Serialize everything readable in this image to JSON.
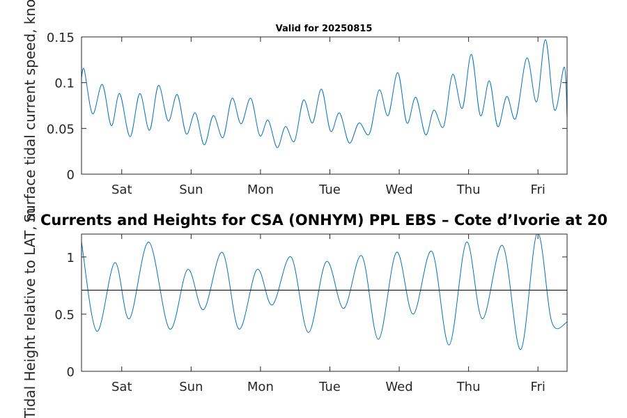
{
  "chart_data": [
    {
      "type": "line",
      "title": "Valid for 20250815",
      "xlabel": "",
      "ylabel": "Surface tidal current speed, knots",
      "ylim": [
        0,
        0.15
      ],
      "xlim": [
        0.42,
        7.42
      ],
      "yticks": [
        0,
        0.05,
        0.1,
        0.15
      ],
      "ytick_labels": [
        "0",
        "0.05",
        "0.1",
        "0.15"
      ],
      "xticks": [
        1,
        2,
        3,
        4,
        5,
        6,
        7
      ],
      "xtick_labels": [
        "Sat",
        "Sun",
        "Mon",
        "Tue",
        "Wed",
        "Thu",
        "Fri"
      ],
      "line_color": "#0072bd",
      "x": [
        0.42,
        0.46,
        0.58,
        0.72,
        0.85,
        0.97,
        1.12,
        1.26,
        1.4,
        1.53,
        1.67,
        1.8,
        1.93,
        2.06,
        2.19,
        2.32,
        2.46,
        2.59,
        2.72,
        2.86,
        2.99,
        3.11,
        3.24,
        3.36,
        3.49,
        3.62,
        3.75,
        3.88,
        4.01,
        4.14,
        4.28,
        4.42,
        4.57,
        4.71,
        4.84,
        4.98,
        5.11,
        5.24,
        5.38,
        5.5,
        5.64,
        5.77,
        5.91,
        6.04,
        6.17,
        6.3,
        6.42,
        6.55,
        6.68,
        6.84,
        6.98,
        7.11,
        7.24,
        7.38,
        7.42
      ],
      "y": [
        0.105,
        0.114,
        0.066,
        0.098,
        0.053,
        0.088,
        0.041,
        0.088,
        0.048,
        0.097,
        0.058,
        0.087,
        0.044,
        0.067,
        0.032,
        0.064,
        0.04,
        0.083,
        0.055,
        0.083,
        0.042,
        0.059,
        0.029,
        0.052,
        0.036,
        0.081,
        0.056,
        0.093,
        0.047,
        0.067,
        0.034,
        0.056,
        0.044,
        0.092,
        0.064,
        0.111,
        0.056,
        0.084,
        0.043,
        0.07,
        0.052,
        0.109,
        0.072,
        0.131,
        0.064,
        0.102,
        0.052,
        0.085,
        0.061,
        0.127,
        0.079,
        0.147,
        0.07,
        0.117,
        0.061
      ]
    },
    {
      "type": "line",
      "title": "Currents and Heights for CSA (ONHYM) PPL EBS  – Cote d’Ivorie at 20",
      "xlabel": "",
      "ylabel": "Tidal Height relative to LAT, m",
      "ylim": [
        0,
        1.2
      ],
      "xlim": [
        0.42,
        7.42
      ],
      "yticks": [
        0,
        0.5,
        1
      ],
      "ytick_labels": [
        "0",
        "0.5",
        "1"
      ],
      "xticks": [
        1,
        2,
        3,
        4,
        5,
        6,
        7
      ],
      "xtick_labels": [
        "Sat",
        "Sun",
        "Mon",
        "Tue",
        "Wed",
        "Thu",
        "Fri"
      ],
      "line_color": "#0072bd",
      "reference_line": 0.71,
      "x": [
        0.42,
        0.64,
        0.9,
        1.11,
        1.39,
        1.69,
        1.95,
        2.18,
        2.45,
        2.69,
        2.95,
        3.17,
        3.44,
        3.69,
        3.95,
        4.2,
        4.46,
        4.7,
        4.96,
        5.2,
        5.47,
        5.72,
        5.97,
        6.2,
        6.49,
        6.75,
        6.99,
        7.2,
        7.42
      ],
      "y": [
        1.13,
        0.35,
        0.95,
        0.46,
        1.13,
        0.37,
        0.89,
        0.54,
        1.04,
        0.37,
        0.89,
        0.58,
        1.0,
        0.34,
        0.96,
        0.55,
        1.01,
        0.28,
        1.04,
        0.5,
        1.05,
        0.23,
        1.13,
        0.46,
        1.1,
        0.19,
        1.21,
        0.43,
        0.43
      ]
    }
  ]
}
